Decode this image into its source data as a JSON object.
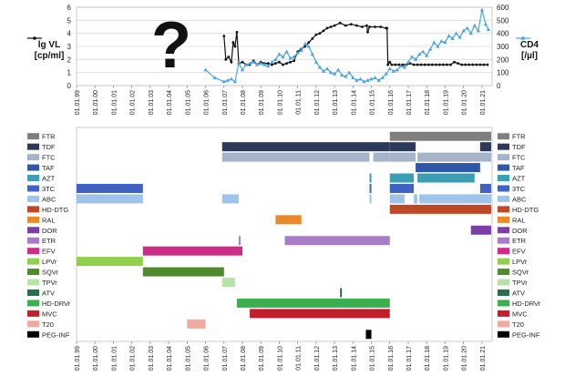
{
  "chart_data": [
    {
      "type": "line",
      "x_axis_ticks": [
        "01.01.99",
        "01.01.00",
        "01.01.01",
        "01.01.02",
        "01.01.03",
        "01.01.04",
        "01.01.05",
        "01.01.06",
        "01.01.07",
        "01.01.08",
        "01.01.09",
        "01.01.10",
        "01.01.11",
        "01.01.12",
        "01.01.13",
        "01.01.14",
        "01.01.15",
        "01.01.16",
        "01.01.17",
        "01.01.18",
        "01.01.19",
        "01.01.20",
        "01.01.21"
      ],
      "left_axis": {
        "label_line1": "lg VL",
        "label_line2": "[cp/ml]",
        "ticks": [
          "0",
          "1",
          "2",
          "3",
          "4",
          "5",
          "6"
        ],
        "ylim": [
          0,
          6
        ]
      },
      "right_axis": {
        "label_line1": "CD4",
        "label_line2": "[/µl]",
        "ticks": [
          "0",
          "100",
          "200",
          "300",
          "400",
          "500",
          "600"
        ],
        "ylim": [
          0,
          600
        ]
      },
      "unknown_period_marker": "?",
      "series": [
        {
          "name": "lg VL",
          "axis": "left",
          "color": "#111111",
          "points": [
            [
              2007.0,
              3.8
            ],
            [
              2007.1,
              2.0
            ],
            [
              2007.25,
              2.2
            ],
            [
              2007.4,
              1.8
            ],
            [
              2007.5,
              3.3
            ],
            [
              2007.6,
              3.0
            ],
            [
              2007.7,
              4.1
            ],
            [
              2007.8,
              1.7
            ],
            [
              2008.0,
              1.8
            ],
            [
              2008.2,
              1.6
            ],
            [
              2008.4,
              1.6
            ],
            [
              2008.6,
              1.9
            ],
            [
              2008.8,
              1.6
            ],
            [
              2009.0,
              1.8
            ],
            [
              2009.2,
              1.7
            ],
            [
              2009.4,
              1.7
            ],
            [
              2009.6,
              1.6
            ],
            [
              2009.8,
              1.7
            ],
            [
              2010.0,
              1.8
            ],
            [
              2010.2,
              1.6
            ],
            [
              2010.4,
              1.7
            ],
            [
              2010.6,
              1.8
            ],
            [
              2010.8,
              1.9
            ],
            [
              2011.0,
              2.6
            ],
            [
              2011.2,
              2.8
            ],
            [
              2011.4,
              3.0
            ],
            [
              2011.6,
              3.3
            ],
            [
              2011.8,
              3.6
            ],
            [
              2012.0,
              3.9
            ],
            [
              2012.2,
              4.0
            ],
            [
              2012.4,
              4.2
            ],
            [
              2012.6,
              4.4
            ],
            [
              2012.8,
              4.5
            ],
            [
              2013.0,
              4.6
            ],
            [
              2013.3,
              4.8
            ],
            [
              2013.6,
              4.6
            ],
            [
              2013.9,
              4.7
            ],
            [
              2014.2,
              4.6
            ],
            [
              2014.5,
              4.5
            ],
            [
              2014.75,
              4.6
            ],
            [
              2014.8,
              4.1
            ],
            [
              2014.9,
              4.5
            ],
            [
              2015.2,
              4.5
            ],
            [
              2015.5,
              4.5
            ],
            [
              2015.8,
              4.4
            ],
            [
              2015.85,
              4.4
            ],
            [
              2015.9,
              1.6
            ],
            [
              2016.0,
              1.8
            ],
            [
              2016.1,
              1.6
            ],
            [
              2016.3,
              1.6
            ],
            [
              2016.5,
              1.6
            ],
            [
              2016.7,
              1.6
            ],
            [
              2016.9,
              1.6
            ],
            [
              2017.1,
              1.7
            ],
            [
              2017.3,
              1.6
            ],
            [
              2017.5,
              1.6
            ],
            [
              2017.7,
              1.6
            ],
            [
              2017.9,
              1.6
            ],
            [
              2018.1,
              1.6
            ],
            [
              2018.3,
              1.6
            ],
            [
              2018.5,
              1.6
            ],
            [
              2018.7,
              1.6
            ],
            [
              2018.9,
              1.6
            ],
            [
              2019.1,
              1.6
            ],
            [
              2019.3,
              1.6
            ],
            [
              2019.5,
              1.8
            ],
            [
              2019.7,
              1.7
            ],
            [
              2019.9,
              1.6
            ],
            [
              2020.1,
              1.6
            ],
            [
              2020.3,
              1.6
            ],
            [
              2020.5,
              1.6
            ],
            [
              2020.7,
              1.6
            ],
            [
              2020.9,
              1.6
            ],
            [
              2021.1,
              1.6
            ],
            [
              2021.3,
              1.6
            ]
          ]
        },
        {
          "name": "CD4",
          "axis": "right",
          "color": "#4ea6dc",
          "points": [
            [
              2006.0,
              120
            ],
            [
              2006.5,
              60
            ],
            [
              2007.0,
              30
            ],
            [
              2007.2,
              40
            ],
            [
              2007.4,
              50
            ],
            [
              2007.6,
              30
            ],
            [
              2007.8,
              170
            ],
            [
              2008.0,
              120
            ],
            [
              2008.2,
              160
            ],
            [
              2008.4,
              170
            ],
            [
              2008.6,
              180
            ],
            [
              2008.8,
              160
            ],
            [
              2009.0,
              170
            ],
            [
              2009.2,
              160
            ],
            [
              2009.4,
              150
            ],
            [
              2009.6,
              180
            ],
            [
              2009.8,
              200
            ],
            [
              2010.0,
              240
            ],
            [
              2010.2,
              220
            ],
            [
              2010.4,
              260
            ],
            [
              2010.6,
              210
            ],
            [
              2010.8,
              220
            ],
            [
              2011.0,
              250
            ],
            [
              2011.2,
              270
            ],
            [
              2011.4,
              320
            ],
            [
              2011.6,
              300
            ],
            [
              2011.8,
              240
            ],
            [
              2012.0,
              180
            ],
            [
              2012.2,
              140
            ],
            [
              2012.4,
              110
            ],
            [
              2012.6,
              130
            ],
            [
              2012.8,
              100
            ],
            [
              2013.0,
              90
            ],
            [
              2013.2,
              120
            ],
            [
              2013.4,
              80
            ],
            [
              2013.6,
              70
            ],
            [
              2013.8,
              100
            ],
            [
              2014.0,
              60
            ],
            [
              2014.2,
              40
            ],
            [
              2014.4,
              50
            ],
            [
              2014.6,
              30
            ],
            [
              2014.8,
              40
            ],
            [
              2015.0,
              50
            ],
            [
              2015.2,
              60
            ],
            [
              2015.4,
              40
            ],
            [
              2015.6,
              60
            ],
            [
              2015.8,
              90
            ],
            [
              2016.0,
              130
            ],
            [
              2016.2,
              110
            ],
            [
              2016.4,
              120
            ],
            [
              2016.6,
              150
            ],
            [
              2016.8,
              140
            ],
            [
              2017.0,
              180
            ],
            [
              2017.2,
              220
            ],
            [
              2017.4,
              200
            ],
            [
              2017.6,
              240
            ],
            [
              2017.8,
              260
            ],
            [
              2018.0,
              230
            ],
            [
              2018.2,
              280
            ],
            [
              2018.4,
              330
            ],
            [
              2018.6,
              300
            ],
            [
              2018.8,
              340
            ],
            [
              2019.0,
              330
            ],
            [
              2019.2,
              380
            ],
            [
              2019.4,
              360
            ],
            [
              2019.6,
              400
            ],
            [
              2019.8,
              370
            ],
            [
              2020.0,
              420
            ],
            [
              2020.2,
              440
            ],
            [
              2020.4,
              400
            ],
            [
              2020.6,
              460
            ],
            [
              2020.8,
              420
            ],
            [
              2021.0,
              580
            ],
            [
              2021.2,
              470
            ],
            [
              2021.35,
              430
            ]
          ]
        }
      ]
    },
    {
      "type": "gantt",
      "x_axis_ticks": [
        "01.01.99",
        "01.01.00",
        "01.01.01",
        "01.01.02",
        "01.01.03",
        "01.01.04",
        "01.01.05",
        "01.01.06",
        "01.01.07",
        "01.01.08",
        "01.01.09",
        "01.01.10",
        "01.01.11",
        "01.01.12",
        "01.01.13",
        "01.01.14",
        "01.01.15",
        "01.01.16",
        "01.01.17",
        "01.01.18",
        "01.01.19",
        "01.01.20",
        "01.01.21"
      ],
      "rows": [
        {
          "drug": "FTR",
          "color": "#7f7f7f",
          "periods": [
            [
              2016.0,
              2021.5
            ]
          ]
        },
        {
          "drug": "TDF",
          "color": "#2c3a57",
          "periods": [
            [
              2006.9,
              2016.0
            ],
            [
              2016.0,
              2017.4
            ],
            [
              2020.9,
              2021.5
            ]
          ]
        },
        {
          "drug": "FTC",
          "color": "#a6b4c9",
          "periods": [
            [
              2006.9,
              2014.9
            ],
            [
              2015.1,
              2016.0
            ],
            [
              2016.0,
              2017.4
            ],
            [
              2017.5,
              2021.5
            ]
          ]
        },
        {
          "drug": "TAF",
          "color": "#2f56a8",
          "periods": [
            [
              2017.4,
              2020.9
            ]
          ]
        },
        {
          "drug": "AZT",
          "color": "#3a9fb4",
          "periods": [
            [
              2014.9,
              2015.0
            ],
            [
              2016.0,
              2017.3
            ],
            [
              2017.5,
              2020.6
            ]
          ]
        },
        {
          "drug": "3TC",
          "color": "#3f63c2",
          "periods": [
            [
              1999.0,
              2002.6
            ],
            [
              2014.9,
              2015.0
            ],
            [
              2016.0,
              2017.3
            ],
            [
              2020.9,
              2021.5
            ]
          ]
        },
        {
          "drug": "ABC",
          "color": "#9ec4ea",
          "periods": [
            [
              1999.0,
              2002.6
            ],
            [
              2006.9,
              2007.8
            ],
            [
              2014.9,
              2015.0
            ],
            [
              2016.0,
              2016.8
            ],
            [
              2017.3,
              2017.5
            ],
            [
              2017.6,
              2021.5
            ]
          ]
        },
        {
          "drug": "HD-DTG",
          "color": "#c0472a",
          "periods": [
            [
              2016.0,
              2021.5
            ]
          ]
        },
        {
          "drug": "RAL",
          "color": "#e88a2c",
          "periods": [
            [
              2009.8,
              2011.2
            ]
          ]
        },
        {
          "drug": "DOR",
          "color": "#7b3fa6",
          "periods": [
            [
              2020.4,
              2021.5
            ]
          ]
        },
        {
          "drug": "ETR",
          "color": "#a97cc8",
          "periods": [
            [
              2007.8,
              2007.9
            ],
            [
              2010.3,
              2016.0
            ]
          ]
        },
        {
          "drug": "EFV",
          "color": "#cf2c8a",
          "periods": [
            [
              2002.6,
              2008.0
            ]
          ]
        },
        {
          "drug": "LPVr",
          "color": "#8fd14f",
          "periods": [
            [
              1999.0,
              2002.6
            ]
          ]
        },
        {
          "drug": "SQVr",
          "color": "#4f8a2c",
          "periods": [
            [
              2002.6,
              2007.0
            ]
          ]
        },
        {
          "drug": "TPVr",
          "color": "#b8e2a8",
          "periods": [
            [
              2006.9,
              2007.6
            ]
          ]
        },
        {
          "drug": "ATV",
          "color": "#2f6b4a",
          "periods": [
            [
              2013.3,
              2013.4
            ]
          ]
        },
        {
          "drug": "HD-DRVr",
          "color": "#3dae4f",
          "periods": [
            [
              2007.7,
              2016.0
            ]
          ]
        },
        {
          "drug": "MVC",
          "color": "#c0202a",
          "periods": [
            [
              2008.4,
              2016.0
            ]
          ]
        },
        {
          "drug": "T20",
          "color": "#f0aaa0",
          "periods": [
            [
              2005.0,
              2006.0
            ]
          ]
        },
        {
          "drug": "PEG-INF",
          "color": "#000000",
          "periods": [
            [
              2014.7,
              2015.0
            ]
          ]
        }
      ]
    }
  ]
}
